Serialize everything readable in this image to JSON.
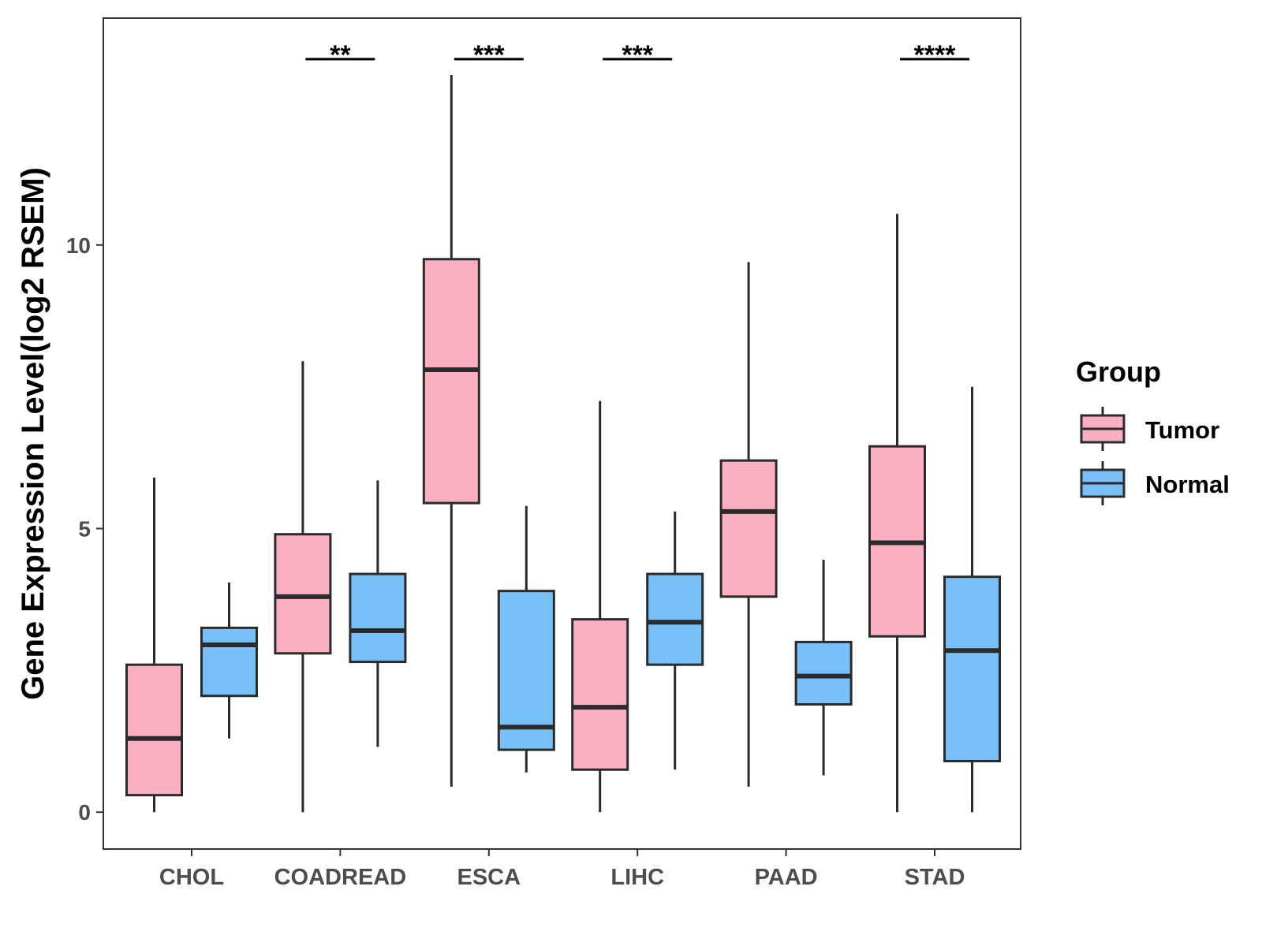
{
  "chart_data": {
    "type": "boxplot",
    "title": "",
    "xlabel": "",
    "ylabel": "Gene Expression Level(log2 RSEM)",
    "ylim": [
      -0.65,
      14.0
    ],
    "y_ticks": [
      0,
      5,
      10
    ],
    "categories": [
      "CHOL",
      "COADREAD",
      "ESCA",
      "LIHC",
      "PAAD",
      "STAD"
    ],
    "legend": {
      "title": "Group",
      "position": "right",
      "entries": [
        "Tumor",
        "Normal"
      ]
    },
    "series": [
      {
        "name": "Tumor",
        "color": "#FBB0C2",
        "boxes": [
          {
            "category": "CHOL",
            "whisker_low": 0.0,
            "q1": 0.3,
            "median": 1.3,
            "q3": 2.6,
            "whisker_high": 5.9
          },
          {
            "category": "COADREAD",
            "whisker_low": 0.0,
            "q1": 2.8,
            "median": 3.8,
            "q3": 4.9,
            "whisker_high": 7.95
          },
          {
            "category": "ESCA",
            "whisker_low": 0.45,
            "q1": 5.45,
            "median": 7.8,
            "q3": 9.75,
            "whisker_high": 13.0
          },
          {
            "category": "LIHC",
            "whisker_low": 0.0,
            "q1": 0.75,
            "median": 1.85,
            "q3": 3.4,
            "whisker_high": 7.25
          },
          {
            "category": "PAAD",
            "whisker_low": 0.45,
            "q1": 3.8,
            "median": 5.3,
            "q3": 6.2,
            "whisker_high": 9.7
          },
          {
            "category": "STAD",
            "whisker_low": 0.0,
            "q1": 3.1,
            "median": 4.75,
            "q3": 6.45,
            "whisker_high": 10.55
          }
        ]
      },
      {
        "name": "Normal",
        "color": "#78C1F8",
        "boxes": [
          {
            "category": "CHOL",
            "whisker_low": 1.3,
            "q1": 2.05,
            "median": 2.95,
            "q3": 3.25,
            "whisker_high": 4.05
          },
          {
            "category": "COADREAD",
            "whisker_low": 1.15,
            "q1": 2.65,
            "median": 3.2,
            "q3": 4.2,
            "whisker_high": 5.85
          },
          {
            "category": "ESCA",
            "whisker_low": 0.7,
            "q1": 1.1,
            "median": 1.5,
            "q3": 3.9,
            "whisker_high": 5.4
          },
          {
            "category": "LIHC",
            "whisker_low": 0.75,
            "q1": 2.6,
            "median": 3.35,
            "q3": 4.2,
            "whisker_high": 5.3
          },
          {
            "category": "PAAD",
            "whisker_low": 0.65,
            "q1": 1.9,
            "median": 2.4,
            "q3": 3.0,
            "whisker_high": 4.45
          },
          {
            "category": "STAD",
            "whisker_low": 0.0,
            "q1": 0.9,
            "median": 2.85,
            "q3": 4.15,
            "whisker_high": 7.5
          }
        ]
      }
    ],
    "significance": [
      {
        "category": "COADREAD",
        "label": "**"
      },
      {
        "category": "ESCA",
        "label": "***"
      },
      {
        "category": "LIHC",
        "label": "***"
      },
      {
        "category": "STAD",
        "label": "****"
      }
    ]
  }
}
